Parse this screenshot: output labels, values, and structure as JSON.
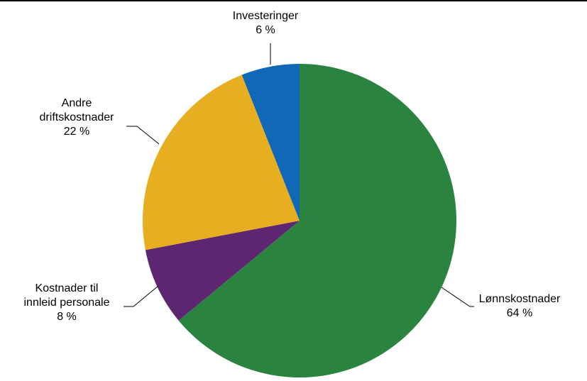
{
  "chart_data": {
    "type": "pie",
    "start_angle_deg": 90,
    "direction": "clockwise",
    "slices": [
      {
        "key": "lonn",
        "lines": [
          "Lønnskostnader",
          "64 %"
        ],
        "value": 64,
        "color": "#2a843f"
      },
      {
        "key": "innleid",
        "lines": [
          "Kostnader til",
          "innleid personale",
          "8 %"
        ],
        "value": 8,
        "color": "#5e2571"
      },
      {
        "key": "andre",
        "lines": [
          "Andre",
          "driftskostnader",
          "22 %"
        ],
        "value": 22,
        "color": "#e8ae22"
      },
      {
        "key": "invest",
        "lines": [
          "Investeringer",
          "6 %"
        ],
        "value": 6,
        "color": "#1068b7"
      }
    ]
  }
}
